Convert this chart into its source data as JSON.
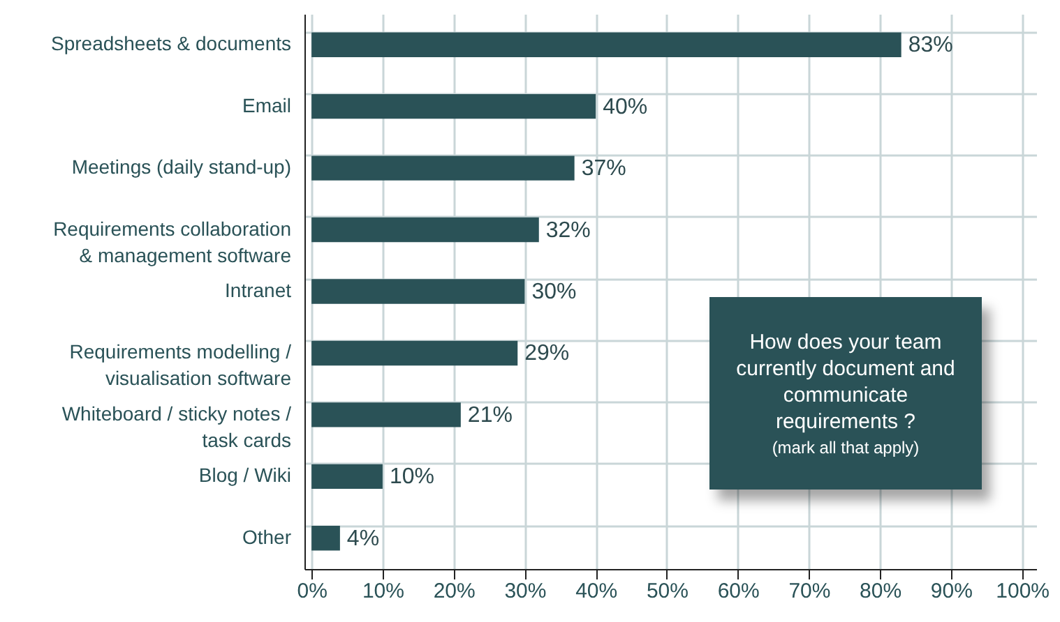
{
  "chart_data": {
    "type": "bar",
    "orientation": "horizontal",
    "title": "How does your team currently document and communicate requirements ?",
    "subtitle": "(mark all that apply)",
    "categories": [
      "Spreadsheets & documents",
      "Email",
      "Meetings (daily stand-up)",
      "Requirements collaboration & management software",
      "Intranet",
      "Requirements modelling / visualisation software",
      "Whiteboard / sticky notes / task cards",
      "Blog / Wiki",
      "Other"
    ],
    "values": [
      83,
      40,
      37,
      32,
      30,
      29,
      21,
      10,
      4
    ],
    "value_labels": [
      "83%",
      "40%",
      "37%",
      "32%",
      "30%",
      "29%",
      "21%",
      "10%",
      "4%"
    ],
    "color": "#2a5257",
    "xlim": [
      -1,
      102
    ],
    "xticks": [
      {
        "value": 0,
        "label": "0%"
      },
      {
        "value": 10,
        "label": "10%"
      },
      {
        "value": 20,
        "label": "20%"
      },
      {
        "value": 30,
        "label": "30%"
      },
      {
        "value": 40,
        "label": "40%"
      },
      {
        "value": 50,
        "label": "50%"
      },
      {
        "value": 60,
        "label": "60%"
      },
      {
        "value": 70,
        "label": "70%"
      },
      {
        "value": 80,
        "label": "80%"
      },
      {
        "value": 90,
        "label": "90%"
      },
      {
        "value": 100,
        "label": "100%"
      }
    ],
    "grid": true
  }
}
